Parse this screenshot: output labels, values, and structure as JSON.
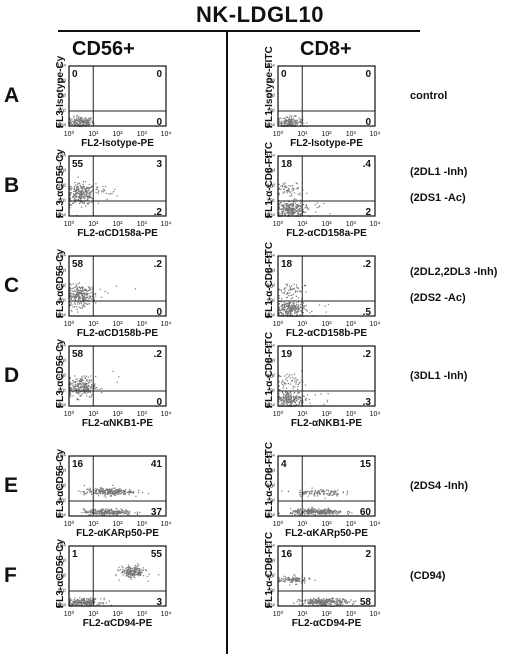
{
  "figure": {
    "title": "NK-LDGL10",
    "columns": [
      "CD56+",
      "CD8+"
    ],
    "tick_labels": [
      "10⁰",
      "10¹",
      "10²",
      "10³",
      "10⁴"
    ]
  },
  "rows": [
    {
      "letter": "A",
      "notes": [
        "control"
      ]
    },
    {
      "letter": "B",
      "notes": [
        "(2DL1 -Inh)",
        "(2DS1 -Ac)"
      ]
    },
    {
      "letter": "C",
      "notes": [
        "(2DL2,2DL3 -Inh)",
        "(2DS2 -Ac)"
      ]
    },
    {
      "letter": "D",
      "notes": [
        "(3DL1 -Inh)"
      ]
    },
    {
      "letter": "E",
      "notes": [
        "(2DS4 -Inh)"
      ]
    },
    {
      "letter": "F",
      "notes": [
        "(CD94)"
      ]
    }
  ],
  "chart_data": [
    {
      "type": "scatter",
      "row": "A",
      "column": "CD56+",
      "xlabel": "FL2-Isotype-PE",
      "ylabel": "FL3-Isotype-Cy",
      "xlim": [
        1,
        10000
      ],
      "ylim": [
        1,
        10000
      ],
      "log_scale": true,
      "grid": false,
      "quadrant_percentages": {
        "upper_left": "0",
        "upper_right": "0",
        "lower_right": "0"
      },
      "clusters": [
        {
          "x": 3,
          "y": 2,
          "sx": 0.25,
          "sy": 0.18,
          "n": 160
        }
      ]
    },
    {
      "type": "scatter",
      "row": "A",
      "column": "CD8+",
      "xlabel": "FL2-Isotype-PE",
      "ylabel": "FL1-Isotype-FITC",
      "xlim": [
        1,
        10000
      ],
      "ylim": [
        1,
        10000
      ],
      "log_scale": true,
      "grid": false,
      "quadrant_percentages": {
        "upper_left": "0",
        "upper_right": "0",
        "lower_right": "0"
      },
      "clusters": [
        {
          "x": 3,
          "y": 2,
          "sx": 0.25,
          "sy": 0.18,
          "n": 160
        }
      ]
    },
    {
      "type": "scatter",
      "row": "B",
      "column": "CD56+",
      "xlabel": "FL2-αCD158a-PE",
      "ylabel": "FL3-αCD56-Cy",
      "xlim": [
        1,
        10000
      ],
      "ylim": [
        1,
        10000
      ],
      "log_scale": true,
      "grid": false,
      "quadrant_percentages": {
        "upper_left": "55",
        "upper_right": "3",
        "lower_right": ".2"
      },
      "clusters": [
        {
          "x": 3,
          "y": 30,
          "sx": 0.3,
          "sy": 0.35,
          "n": 260
        },
        {
          "x": 20,
          "y": 40,
          "sx": 0.35,
          "sy": 0.25,
          "n": 25
        }
      ]
    },
    {
      "type": "scatter",
      "row": "B",
      "column": "CD8+",
      "xlabel": "FL2-αCD158a-PE",
      "ylabel": "FL1-α-CD8-FITC",
      "xlim": [
        1,
        10000
      ],
      "ylim": [
        1,
        10000
      ],
      "log_scale": true,
      "grid": false,
      "quadrant_percentages": {
        "upper_left": "18",
        "upper_right": ".4",
        "lower_right": "2"
      },
      "clusters": [
        {
          "x": 3,
          "y": 3,
          "sx": 0.3,
          "sy": 0.3,
          "n": 260
        },
        {
          "x": 3,
          "y": 60,
          "sx": 0.3,
          "sy": 0.25,
          "n": 60
        },
        {
          "x": 30,
          "y": 3,
          "sx": 0.3,
          "sy": 0.3,
          "n": 12
        }
      ]
    },
    {
      "type": "scatter",
      "row": "C",
      "column": "CD56+",
      "xlabel": "FL2-αCD158b-PE",
      "ylabel": "FL3-αCD56-Cy",
      "xlim": [
        1,
        10000
      ],
      "ylim": [
        1,
        10000
      ],
      "log_scale": true,
      "grid": false,
      "quadrant_percentages": {
        "upper_left": "58",
        "upper_right": ".2",
        "lower_right": "0"
      },
      "clusters": [
        {
          "x": 3,
          "y": 25,
          "sx": 0.3,
          "sy": 0.35,
          "n": 260
        },
        {
          "x": 150,
          "y": 60,
          "sx": 0.4,
          "sy": 0.3,
          "n": 4
        }
      ]
    },
    {
      "type": "scatter",
      "row": "C",
      "column": "CD8+",
      "xlabel": "FL2-αCD158b-PE",
      "ylabel": "FL1-α-CD8-FITC",
      "xlim": [
        1,
        10000
      ],
      "ylim": [
        1,
        10000
      ],
      "log_scale": true,
      "grid": false,
      "quadrant_percentages": {
        "upper_left": "18",
        "upper_right": ".2",
        "lower_right": ".5"
      },
      "clusters": [
        {
          "x": 3,
          "y": 3,
          "sx": 0.3,
          "sy": 0.3,
          "n": 240
        },
        {
          "x": 3,
          "y": 60,
          "sx": 0.3,
          "sy": 0.25,
          "n": 55
        },
        {
          "x": 60,
          "y": 3,
          "sx": 0.4,
          "sy": 0.3,
          "n": 6
        }
      ]
    },
    {
      "type": "scatter",
      "row": "D",
      "column": "CD56+",
      "xlabel": "FL2-αNKB1-PE",
      "ylabel": "FL3-αCD56-Cy",
      "xlim": [
        1,
        10000
      ],
      "ylim": [
        1,
        10000
      ],
      "log_scale": true,
      "grid": false,
      "quadrant_percentages": {
        "upper_left": "58",
        "upper_right": ".2",
        "lower_right": "0"
      },
      "clusters": [
        {
          "x": 3,
          "y": 20,
          "sx": 0.3,
          "sy": 0.35,
          "n": 240
        },
        {
          "x": 100,
          "y": 70,
          "sx": 0.4,
          "sy": 0.3,
          "n": 3
        }
      ]
    },
    {
      "type": "scatter",
      "row": "D",
      "column": "CD8+",
      "xlabel": "FL2-αNKB1-PE",
      "ylabel": "FL1-α-CD8-FITC",
      "xlim": [
        1,
        10000
      ],
      "ylim": [
        1,
        10000
      ],
      "log_scale": true,
      "grid": false,
      "quadrant_percentages": {
        "upper_left": "19",
        "upper_right": ".2",
        "lower_right": ".3"
      },
      "clusters": [
        {
          "x": 3,
          "y": 3,
          "sx": 0.3,
          "sy": 0.3,
          "n": 220
        },
        {
          "x": 3,
          "y": 50,
          "sx": 0.3,
          "sy": 0.25,
          "n": 50
        },
        {
          "x": 80,
          "y": 3,
          "sx": 0.4,
          "sy": 0.3,
          "n": 6
        }
      ]
    },
    {
      "type": "scatter",
      "row": "E",
      "column": "CD56+",
      "xlabel": "FL2-αKARp50-PE",
      "ylabel": "FL3-αCD56-Cy",
      "xlim": [
        1,
        10000
      ],
      "ylim": [
        1,
        10000
      ],
      "log_scale": true,
      "grid": false,
      "quadrant_percentages": {
        "upper_left": "16",
        "upper_right": "41",
        "lower_right": "37"
      },
      "clusters": [
        {
          "x": 40,
          "y": 45,
          "sx": 0.5,
          "sy": 0.12,
          "n": 260
        },
        {
          "x": 40,
          "y": 2,
          "sx": 0.5,
          "sy": 0.1,
          "n": 240
        }
      ]
    },
    {
      "type": "scatter",
      "row": "E",
      "column": "CD8+",
      "xlabel": "FL2-αKARp50-PE",
      "ylabel": "FL1-α-CD8-FITC",
      "xlim": [
        1,
        10000
      ],
      "ylim": [
        1,
        10000
      ],
      "log_scale": true,
      "grid": false,
      "quadrant_percentages": {
        "upper_left": "4",
        "upper_right": "15",
        "lower_right": "60"
      },
      "clusters": [
        {
          "x": 40,
          "y": 40,
          "sx": 0.5,
          "sy": 0.12,
          "n": 110
        },
        {
          "x": 40,
          "y": 2,
          "sx": 0.55,
          "sy": 0.1,
          "n": 300
        }
      ]
    },
    {
      "type": "scatter",
      "row": "F",
      "column": "CD56+",
      "xlabel": "FL2-αCD94-PE",
      "ylabel": "FL3-αCD56-Cy",
      "xlim": [
        1,
        10000
      ],
      "ylim": [
        1,
        10000
      ],
      "log_scale": true,
      "grid": false,
      "quadrant_percentages": {
        "upper_left": "1",
        "upper_right": "55",
        "lower_right": "3"
      },
      "clusters": [
        {
          "x": 4,
          "y": 2,
          "sx": 0.35,
          "sy": 0.12,
          "n": 220
        },
        {
          "x": 400,
          "y": 200,
          "sx": 0.25,
          "sy": 0.2,
          "n": 200
        }
      ]
    },
    {
      "type": "scatter",
      "row": "F",
      "column": "CD8+",
      "xlabel": "FL2-αCD94-PE",
      "ylabel": "FL1-α-CD8-FITC",
      "xlim": [
        1,
        10000
      ],
      "ylim": [
        1,
        10000
      ],
      "log_scale": true,
      "grid": false,
      "quadrant_percentages": {
        "upper_left": "16",
        "upper_right": "2",
        "lower_right": "58"
      },
      "clusters": [
        {
          "x": 4,
          "y": 60,
          "sx": 0.35,
          "sy": 0.12,
          "n": 110
        },
        {
          "x": 80,
          "y": 2,
          "sx": 0.5,
          "sy": 0.12,
          "n": 280
        }
      ]
    }
  ]
}
